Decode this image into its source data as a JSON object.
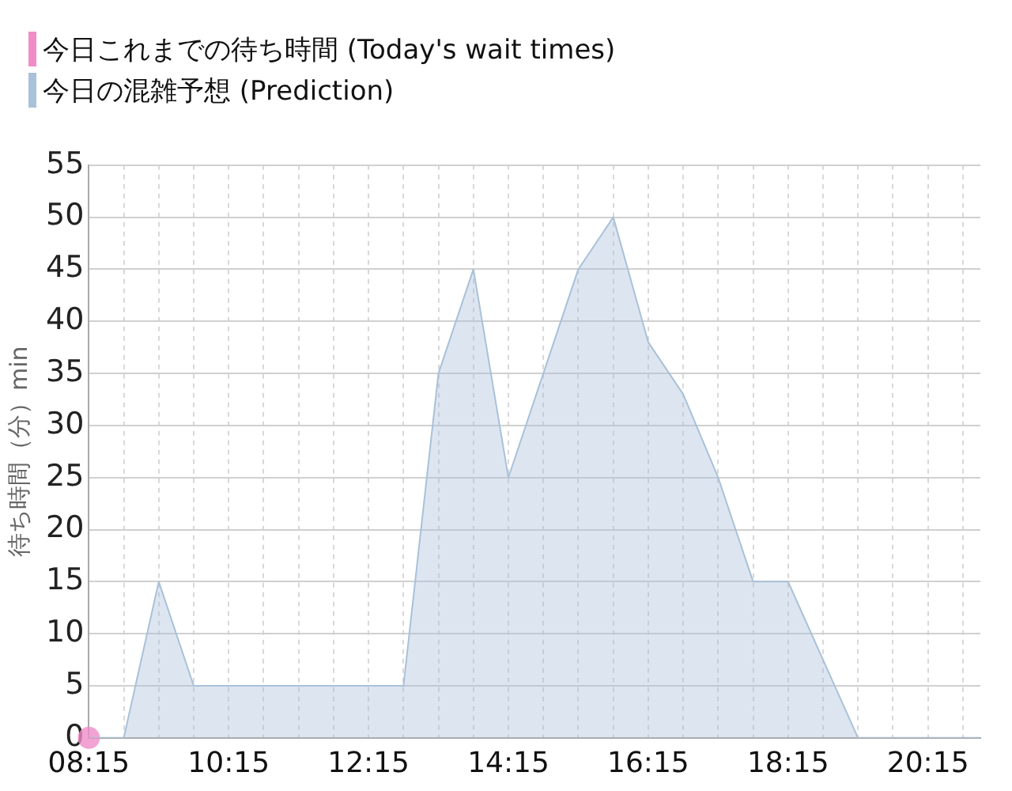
{
  "chart_data": {
    "type": "area",
    "ylabel": "待ち時間（分）min",
    "xlim": [
      8.25,
      21
    ],
    "xticks": [
      {
        "value": 8.25,
        "label": "08:15"
      },
      {
        "value": 8.75,
        "label": null
      },
      {
        "value": 9.25,
        "label": null
      },
      {
        "value": 9.75,
        "label": null
      },
      {
        "value": 10.25,
        "label": "10:15"
      },
      {
        "value": 10.75,
        "label": null
      },
      {
        "value": 11.25,
        "label": null
      },
      {
        "value": 11.75,
        "label": null
      },
      {
        "value": 12.25,
        "label": "12:15"
      },
      {
        "value": 12.75,
        "label": null
      },
      {
        "value": 13.25,
        "label": null
      },
      {
        "value": 13.75,
        "label": null
      },
      {
        "value": 14.25,
        "label": "14:15"
      },
      {
        "value": 14.75,
        "label": null
      },
      {
        "value": 15.25,
        "label": null
      },
      {
        "value": 15.75,
        "label": null
      },
      {
        "value": 16.25,
        "label": "16:15"
      },
      {
        "value": 16.75,
        "label": null
      },
      {
        "value": 17.25,
        "label": null
      },
      {
        "value": 17.75,
        "label": null
      },
      {
        "value": 18.25,
        "label": "18:15"
      },
      {
        "value": 18.75,
        "label": null
      },
      {
        "value": 19.25,
        "label": null
      },
      {
        "value": 19.75,
        "label": null
      },
      {
        "value": 20.25,
        "label": "20:15"
      },
      {
        "value": 20.75,
        "label": null
      }
    ],
    "ylim": [
      0,
      55
    ],
    "yticks": [
      0,
      5,
      10,
      15,
      20,
      25,
      30,
      35,
      40,
      45,
      50,
      55
    ],
    "grid": true,
    "legend": "top left",
    "series": [
      {
        "name": "今日これまでの待ち時間 (Today's wait times)",
        "type": "scatter",
        "color": "#f08cc8",
        "x": [
          8.25
        ],
        "values": [
          0
        ]
      },
      {
        "name": "今日の混雑予想 (Prediction)",
        "color": "#a9c1d9",
        "x": [
          8.25,
          8.75,
          9.25,
          9.75,
          10.25,
          10.75,
          11.25,
          11.75,
          12.25,
          12.75,
          13.25,
          13.75,
          14.25,
          14.75,
          15.25,
          15.75,
          16.25,
          16.75,
          17.25,
          17.75,
          18.25,
          18.75,
          19.25,
          19.75,
          20.25,
          20.75,
          21
        ],
        "values": [
          0,
          0,
          15,
          5,
          5,
          5,
          5,
          5,
          5,
          5,
          35,
          45,
          25,
          35,
          45,
          50,
          38,
          33,
          25,
          15,
          15,
          7.5,
          0,
          0,
          0,
          0,
          0
        ]
      }
    ]
  }
}
